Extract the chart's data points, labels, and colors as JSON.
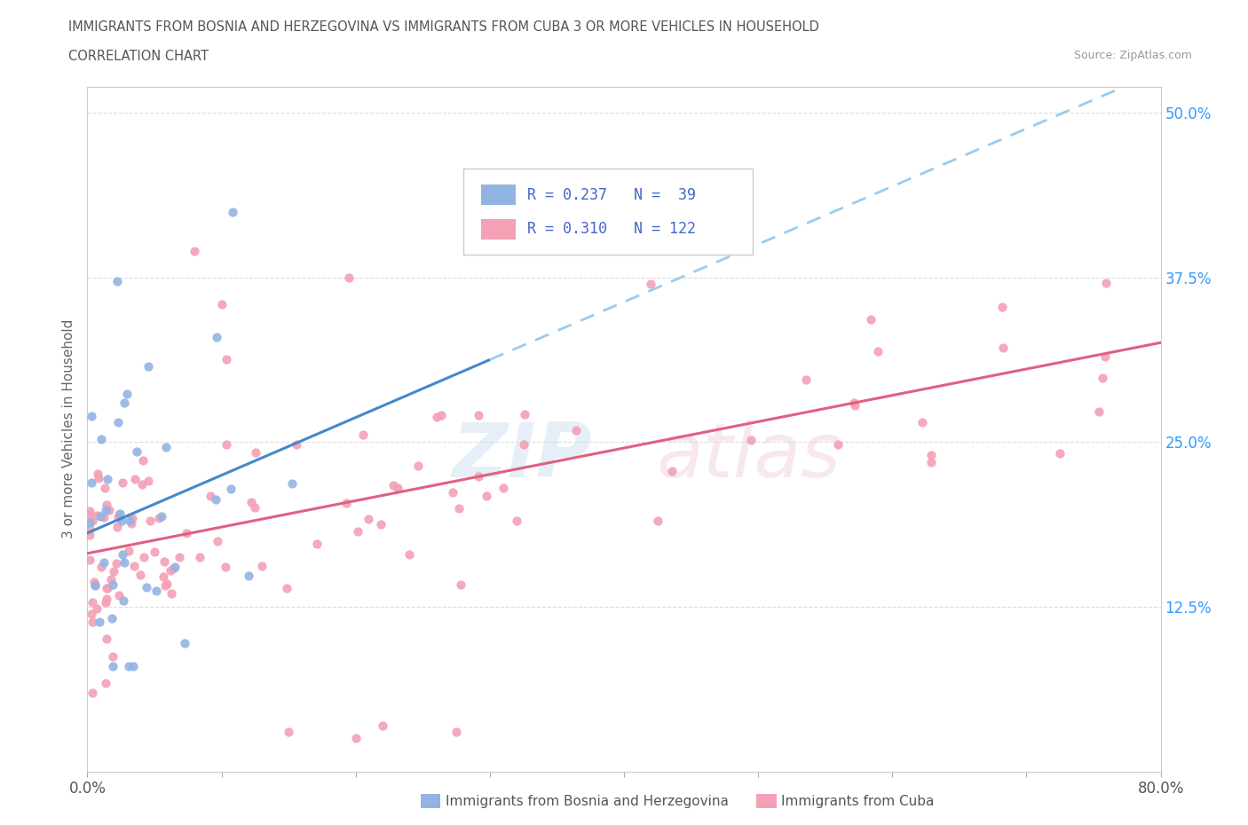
{
  "title_line1": "IMMIGRANTS FROM BOSNIA AND HERZEGOVINA VS IMMIGRANTS FROM CUBA 3 OR MORE VEHICLES IN HOUSEHOLD",
  "title_line2": "CORRELATION CHART",
  "source": "Source: ZipAtlas.com",
  "ylabel": "3 or more Vehicles in Household",
  "color_bosnia": "#92b4e3",
  "color_cuba": "#f4a0b5",
  "color_legend_text": "#4466cc",
  "color_trend_bosnia": "#4488cc",
  "color_trend_cuba": "#e06080",
  "color_trend_bosnia_dash": "#99ccee",
  "bg_color": "#ffffff",
  "grid_color": "#dddddd",
  "xlim": [
    0,
    80
  ],
  "ylim": [
    0,
    52
  ],
  "ytick_vals": [
    12.5,
    25.0,
    37.5,
    50.0
  ],
  "ytick_labels": [
    "12.5%",
    "25.0%",
    "37.5%",
    "50.0%"
  ],
  "xtick_vals": [
    0,
    10,
    20,
    30,
    40,
    50,
    60,
    70,
    80
  ],
  "xtick_show": [
    "0.0%",
    "",
    "",
    "",
    "",
    "",
    "",
    "",
    "80.0%"
  ],
  "legend_r_b": "R = 0.237",
  "legend_n_b": "N =  39",
  "legend_r_c": "R = 0.310",
  "legend_n_c": "N = 122",
  "watermark_zip": "ZIP",
  "watermark_atlas": "atlas",
  "bottom_label_b": "Immigrants from Bosnia and Herzegovina",
  "bottom_label_c": "Immigrants from Cuba"
}
